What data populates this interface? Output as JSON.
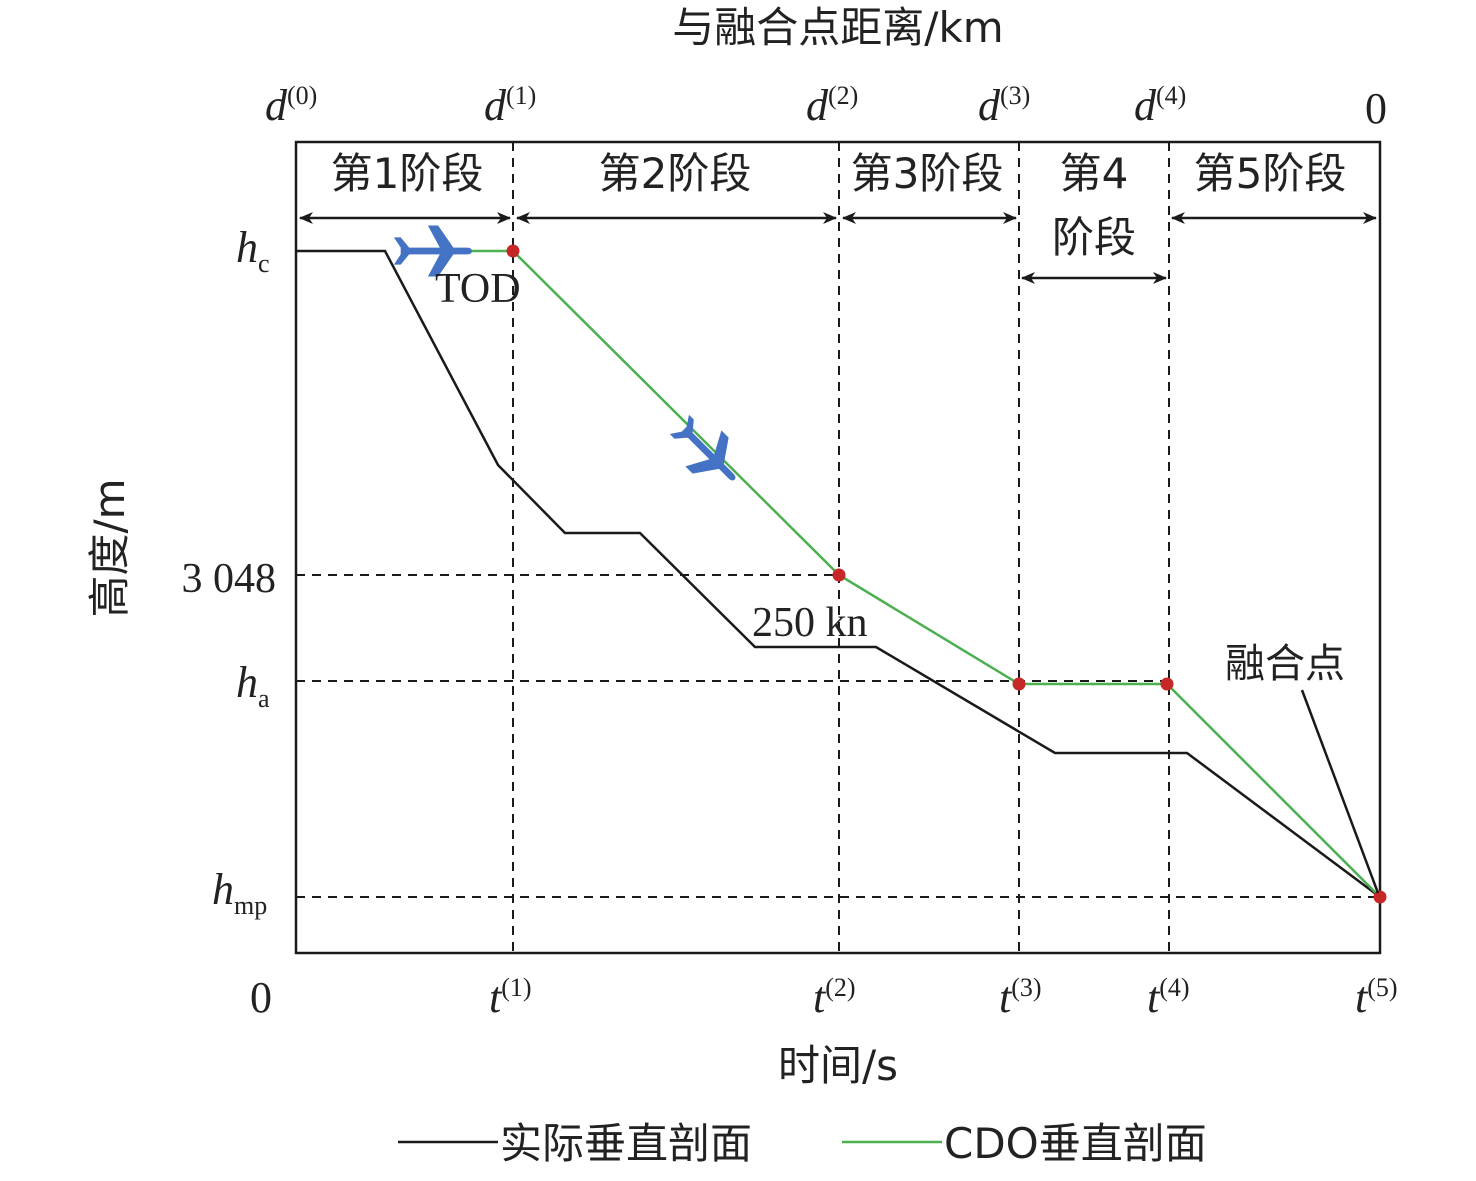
{
  "top_axis": {
    "title": "与融合点距离/km",
    "ticks": [
      {
        "var": "d",
        "sup": "(0)"
      },
      {
        "var": "d",
        "sup": "(1)"
      },
      {
        "var": "d",
        "sup": "(2)"
      },
      {
        "var": "d",
        "sup": "(3)"
      },
      {
        "var": "d",
        "sup": "(4)"
      },
      {
        "text": "0"
      }
    ]
  },
  "x_axis": {
    "title": "时间/s",
    "ticks": [
      {
        "text": "0"
      },
      {
        "var": "t",
        "sup": "(1)"
      },
      {
        "var": "t",
        "sup": "(2)"
      },
      {
        "var": "t",
        "sup": "(3)"
      },
      {
        "var": "t",
        "sup": "(4)"
      },
      {
        "var": "t",
        "sup": "(5)"
      }
    ]
  },
  "y_axis": {
    "title": "高度/m",
    "ticks": [
      {
        "var": "h",
        "sub": "c"
      },
      {
        "text": "3 048"
      },
      {
        "var": "h",
        "sub": "a"
      },
      {
        "var": "h",
        "sub": "mp"
      }
    ]
  },
  "stages": [
    {
      "label": "第1阶段"
    },
    {
      "label": "第2阶段"
    },
    {
      "label": "第3阶段"
    },
    {
      "label_line1": "第4",
      "label_line2": "阶段"
    },
    {
      "label": "第5阶段"
    }
  ],
  "annotations": {
    "tod": "TOD",
    "speed": "250 kn",
    "merge_point": "融合点"
  },
  "legend": [
    {
      "label": "实际垂直剖面",
      "color": "#1a1a1a"
    },
    {
      "label": "CDO垂直剖面",
      "color": "#4caf50"
    }
  ],
  "colors": {
    "actual": "#1a1a1a",
    "cdo": "#4caf50",
    "marker": "#c62828",
    "aircraft": "#4472c4"
  },
  "icons": [
    "airplane-icon",
    "airplane-icon"
  ]
}
